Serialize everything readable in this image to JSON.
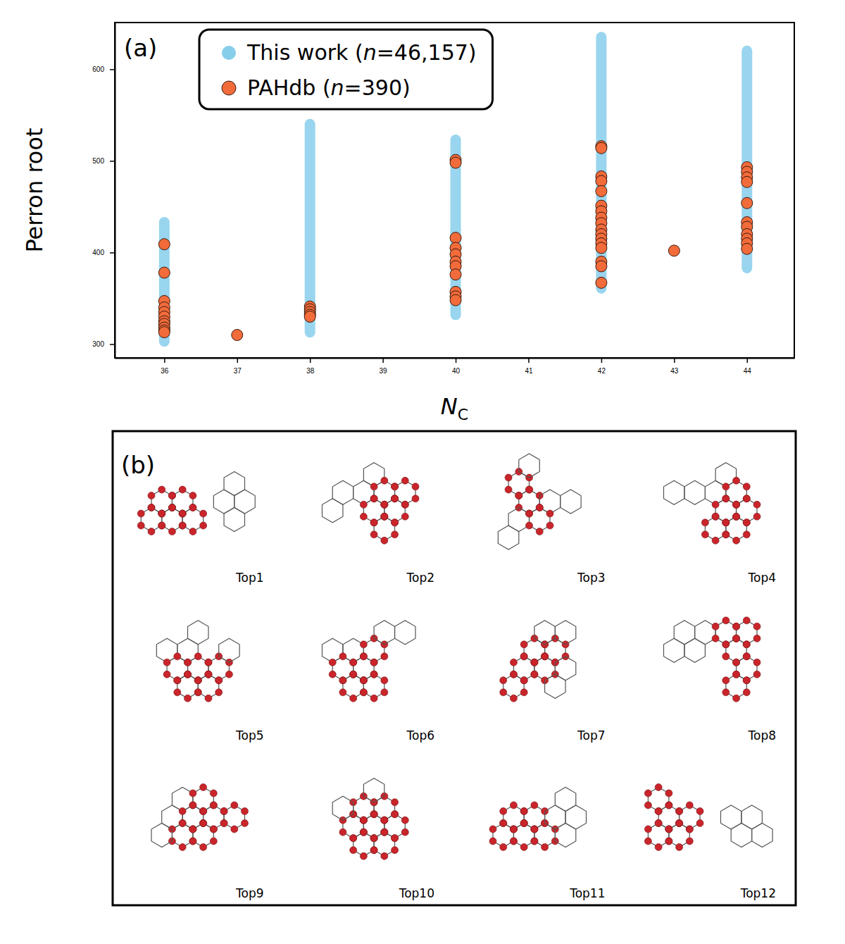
{
  "chart_data": {
    "type": "scatter",
    "panel_label": "(a)",
    "y_label": "Perron root",
    "x_label": {
      "text": "N",
      "subscript": "C"
    },
    "xlim": [
      35.32,
      44.65
    ],
    "ylim": [
      285,
      651
    ],
    "xticks": [
      36,
      37,
      38,
      39,
      40,
      41,
      42,
      43,
      44
    ],
    "yticks": [
      300,
      400,
      500,
      600
    ],
    "legend": "upper left",
    "grid": false,
    "series": [
      {
        "name": "This work (n=46,157)",
        "color": "#87ceeb",
        "marker": "circle",
        "x": [
          36,
          38,
          40,
          42,
          44
        ],
        "low": [
          303,
          313,
          332,
          361,
          383
        ],
        "high": [
          433,
          540,
          523,
          635,
          620
        ]
      },
      {
        "name": "PAHdb (n=390)",
        "color": "#f26b3a",
        "marker": "circle",
        "x": [
          36,
          36,
          36,
          36,
          36,
          36,
          36,
          36,
          36,
          36,
          36,
          37,
          38,
          38,
          38,
          38,
          38,
          40,
          40,
          40,
          40,
          40,
          40,
          40,
          40,
          40,
          40,
          40,
          42,
          42,
          42,
          42,
          42,
          42,
          42,
          42,
          42,
          42,
          42,
          42,
          42,
          42,
          42,
          42,
          42,
          43,
          44,
          44,
          44,
          44,
          44,
          44,
          44,
          44,
          44,
          44,
          44
        ],
        "values": [
          409,
          378,
          347,
          340,
          335,
          330,
          325,
          322,
          318,
          315,
          313,
          310,
          341,
          338,
          335,
          332,
          330,
          501,
          498,
          416,
          405,
          398,
          390,
          385,
          376,
          357,
          352,
          348,
          516,
          514,
          483,
          478,
          467,
          451,
          445,
          438,
          432,
          425,
          420,
          415,
          410,
          405,
          390,
          385,
          367,
          402,
          493,
          488,
          482,
          477,
          454,
          433,
          428,
          420,
          415,
          410,
          404
        ]
      }
    ]
  },
  "panel_b": {
    "label": "(b)",
    "structures": [
      "Top1",
      "Top2",
      "Top3",
      "Top4",
      "Top5",
      "Top6",
      "Top7",
      "Top8",
      "Top9",
      "Top10",
      "Top11",
      "Top12"
    ]
  }
}
